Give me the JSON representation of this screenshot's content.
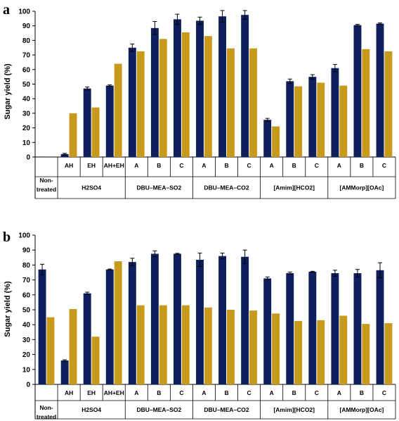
{
  "colors": {
    "series_a": "#0d1f5c",
    "series_b": "#c89a1b",
    "axis": "#000000",
    "error": "#000000"
  },
  "chart_data": [
    {
      "type": "bar",
      "panel_label": "a",
      "ylabel": "Sugar yield (%)",
      "ylim": [
        0,
        100
      ],
      "yticks": [
        0,
        10,
        20,
        30,
        40,
        50,
        60,
        70,
        80,
        90,
        100
      ],
      "grid": false,
      "legend": "none",
      "groups": [
        {
          "label": "Non-treated",
          "categories": [
            ""
          ]
        },
        {
          "label": "H2SO4",
          "categories": [
            "AH",
            "EH",
            "AH+EH"
          ]
        },
        {
          "label": "DBU–MEA–SO2",
          "categories": [
            "A",
            "B",
            "C"
          ]
        },
        {
          "label": "DBU–MEA–CO2",
          "categories": [
            "A",
            "B",
            "C"
          ]
        },
        {
          "label": "[Amim][HCO2]",
          "categories": [
            "A",
            "B",
            "C"
          ]
        },
        {
          "label": "[AMMorp][OAc]",
          "categories": [
            "A",
            "B",
            "C"
          ]
        }
      ],
      "series": [
        {
          "values": [
            0.3,
            2,
            47,
            49,
            75,
            88.5,
            94.5,
            93.5,
            96.5,
            97.5,
            25.5,
            52,
            55,
            61,
            90.5,
            91.5
          ],
          "errors": [
            0,
            0.5,
            1,
            0.5,
            2.5,
            4.5,
            3.5,
            2.5,
            4,
            3,
            1,
            1.5,
            1.5,
            2.5,
            0.5,
            0.5
          ]
        },
        {
          "values": [
            0,
            30,
            34,
            64,
            72.5,
            81,
            85.5,
            83,
            74.5,
            74.5,
            21,
            48.5,
            51,
            49,
            74,
            72.5
          ],
          "errors": [
            0,
            0,
            0,
            0,
            0,
            0,
            0,
            0,
            0,
            0,
            0,
            0,
            0,
            0,
            0,
            0
          ]
        }
      ]
    },
    {
      "type": "bar",
      "panel_label": "b",
      "ylabel": "Sugar yield (%)",
      "ylim": [
        0,
        100
      ],
      "yticks": [
        0,
        10,
        20,
        30,
        40,
        50,
        60,
        70,
        80,
        90,
        100
      ],
      "grid": false,
      "legend": "none",
      "groups": [
        {
          "label": "Non-treated",
          "categories": [
            ""
          ]
        },
        {
          "label": "H2SO4",
          "categories": [
            "AH",
            "EH",
            "AH+EH"
          ]
        },
        {
          "label": "DBU–MEA–SO2",
          "categories": [
            "A",
            "B",
            "C"
          ]
        },
        {
          "label": "DBU–MEA–CO2",
          "categories": [
            "A",
            "B",
            "C"
          ]
        },
        {
          "label": "[Amim][HCO2]",
          "categories": [
            "A",
            "B",
            "C"
          ]
        },
        {
          "label": "[AMMorp][OAc]",
          "categories": [
            "A",
            "B",
            "C"
          ]
        }
      ],
      "series": [
        {
          "values": [
            77,
            16,
            61,
            77,
            82,
            87.5,
            87.5,
            83.5,
            86,
            85.5,
            71,
            74.5,
            75.5,
            74.5,
            74.5,
            76.5
          ],
          "errors": [
            3.5,
            0.5,
            0.8,
            0.3,
            2.5,
            2,
            0.3,
            4.5,
            2,
            4.5,
            1,
            0.8,
            0.3,
            2,
            2.5,
            5
          ]
        },
        {
          "values": [
            45,
            50.5,
            32,
            82.5,
            53,
            53,
            53,
            51.5,
            50,
            49.5,
            47.5,
            42.5,
            43,
            46,
            40.5,
            41
          ],
          "errors": [
            0,
            0,
            0,
            0,
            0,
            0,
            0,
            0,
            0,
            0,
            0,
            0,
            0,
            0,
            0,
            0
          ]
        }
      ]
    }
  ]
}
